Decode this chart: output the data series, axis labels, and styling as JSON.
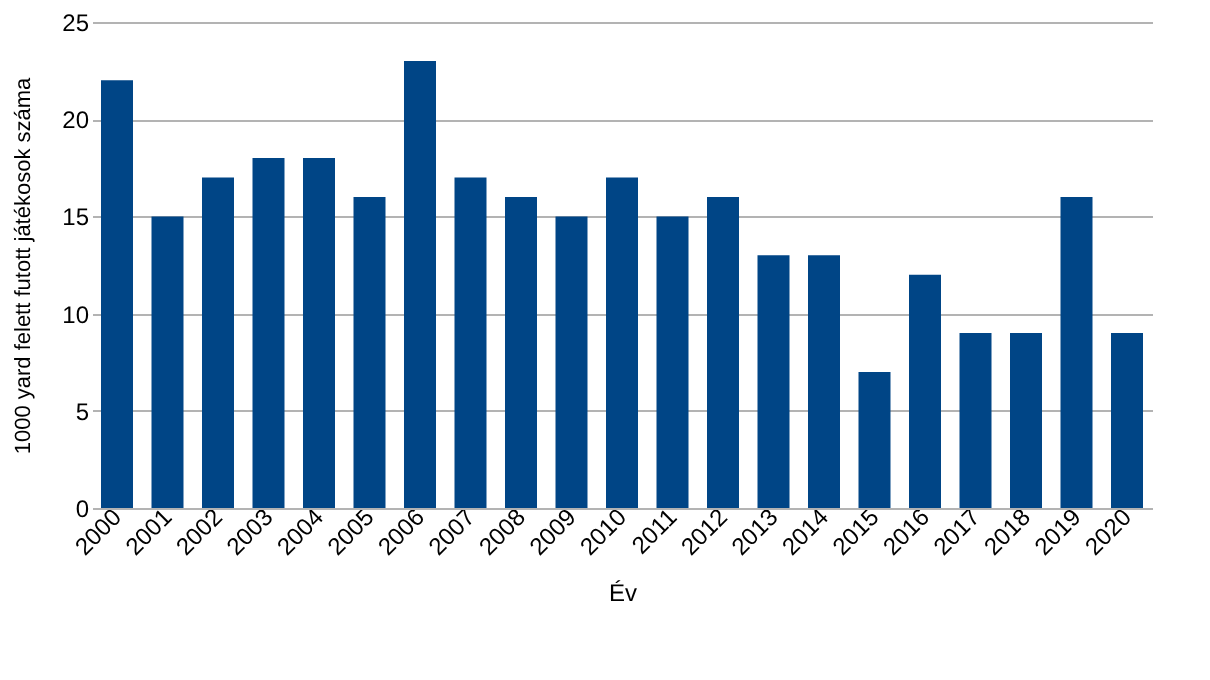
{
  "chart_data": {
    "type": "bar",
    "xlabel": "Év",
    "ylabel": "1000 yard felett futott játékosok száma",
    "categories": [
      "2000",
      "2001",
      "2002",
      "2003",
      "2004",
      "2005",
      "2006",
      "2007",
      "2008",
      "2009",
      "2010",
      "2011",
      "2012",
      "2013",
      "2014",
      "2015",
      "2016",
      "2017",
      "2018",
      "2019",
      "2020"
    ],
    "values": [
      22,
      15,
      17,
      18,
      18,
      16,
      23,
      17,
      16,
      15,
      17,
      15,
      16,
      13,
      13,
      7,
      12,
      9,
      9,
      16,
      9
    ],
    "color": "#004586",
    "ylim": [
      0,
      25
    ],
    "yticks": [
      0,
      5,
      10,
      15,
      20,
      25
    ],
    "grid": "y"
  }
}
